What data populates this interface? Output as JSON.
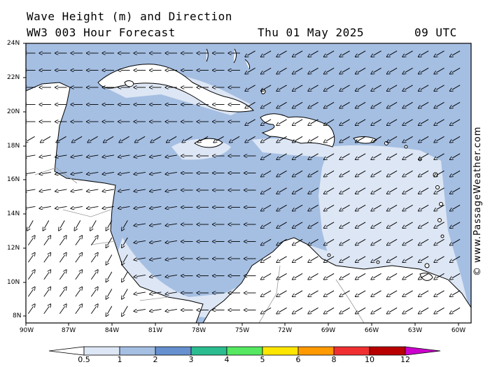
{
  "title_line1": "Wave Height (m) and Direction",
  "title_line2": "WW3 003 Hour Forecast",
  "date": "Thu 01 May 2025",
  "time": "09 UTC",
  "credit": "© www.PassageWeather.com",
  "lat_labels": [
    "24N",
    "22N",
    "20N",
    "18N",
    "16N",
    "14N",
    "12N",
    "10N",
    "8N"
  ],
  "lon_labels": [
    "90W",
    "87W",
    "84W",
    "81W",
    "78W",
    "75W",
    "72W",
    "69W",
    "66W",
    "63W",
    "60W"
  ],
  "colorbar": {
    "labels": [
      "0.5",
      "1",
      "2",
      "3",
      "4",
      "5",
      "6",
      "8",
      "10",
      "12"
    ],
    "colors": [
      "#ffffff",
      "#dde6f4",
      "#a5bfe3",
      "#6690cf",
      "#2bbd8f",
      "#55e860",
      "#ffe600",
      "#ff9a00",
      "#f03030",
      "#b80000",
      "#cc00cc"
    ]
  },
  "colors": {
    "sea_low": "#dde6f4",
    "sea_mid": "#a5bfe3",
    "land": "#ffffff",
    "coast": "#000000",
    "border": "#999999"
  }
}
